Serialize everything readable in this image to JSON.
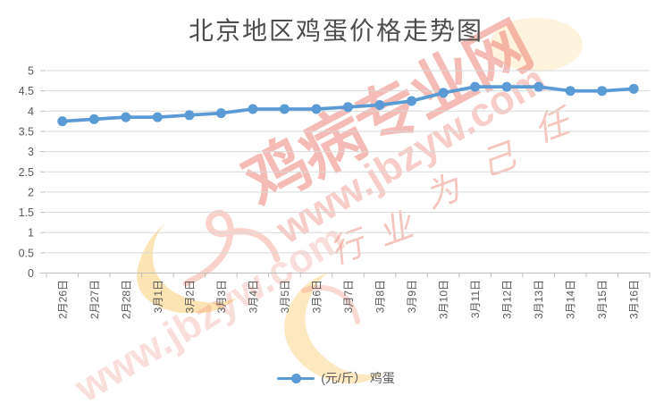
{
  "title": "北京地区鸡蛋价格走势图",
  "chart_data": {
    "type": "line",
    "title": "北京地区鸡蛋价格走势图",
    "categories": [
      "2月26日",
      "2月27日",
      "2月28日",
      "3月1日",
      "3月2日",
      "3月3日",
      "3月4日",
      "3月5日",
      "3月6日",
      "3月7日",
      "3月8日",
      "3月9日",
      "3月10日",
      "3月11日",
      "3月12日",
      "3月13日",
      "3月14日",
      "3月15日",
      "3月16日"
    ],
    "series": [
      {
        "name": "(元/斤） 鸡蛋",
        "values": [
          3.75,
          3.8,
          3.85,
          3.85,
          3.9,
          3.95,
          4.05,
          4.05,
          4.05,
          4.1,
          4.15,
          4.25,
          4.45,
          4.6,
          4.6,
          4.6,
          4.5,
          4.5,
          4.55
        ]
      }
    ],
    "xlabel": "",
    "ylabel": "",
    "ylim": [
      0,
      5
    ],
    "y_ticks": [
      "0",
      "0.5",
      "1",
      "1.5",
      "2",
      "2.5",
      "3",
      "3.5",
      "4",
      "4.5",
      "5"
    ],
    "grid": true,
    "legend_position": "bottom",
    "line_color": "#5B9BD5",
    "grid_color": "#D9D9D9",
    "axis_color": "#BFBFBF",
    "label_color": "#595959"
  },
  "legend": {
    "label": "(元/斤） 鸡蛋"
  },
  "watermark": {
    "brand_text": "鸡病专业网",
    "url_text": "www.jbzyw.com",
    "slogan_chars": [
      "行",
      "业",
      "为",
      "己",
      "任"
    ],
    "red": "#E4503F",
    "yellow": "#F5BA4A"
  }
}
